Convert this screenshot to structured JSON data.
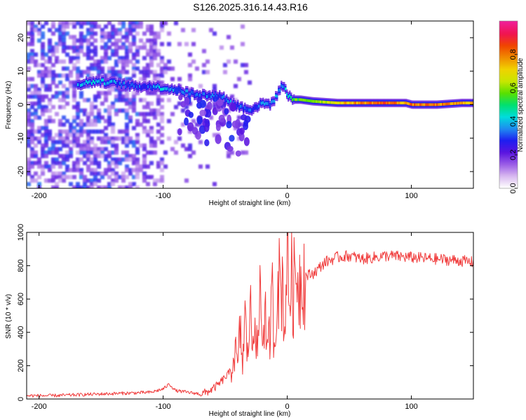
{
  "chart_data": [
    {
      "type": "heatmap",
      "title": "S126.2025.316.14.43.R16",
      "xlabel": "Height of straight line (km)",
      "ylabel": "Frequency (Hz)",
      "xlim": [
        -210,
        150
      ],
      "ylim": [
        -25,
        25
      ],
      "xticks": [
        -200,
        -100,
        0,
        100
      ],
      "yticks": [
        -20,
        -10,
        0,
        10,
        20
      ],
      "xtick_labels": [
        "-200",
        "-100",
        "0",
        "100"
      ],
      "ytick_labels": [
        "-20",
        "-10",
        "0",
        "10",
        "20"
      ],
      "colorbar": {
        "label": "Normalized spectral amplitude",
        "range": [
          0,
          1
        ],
        "ticks": [
          0,
          0.2,
          0.4,
          0.6,
          0.8
        ],
        "tick_labels": [
          "0.0",
          "0.2",
          "0.4",
          "0.6",
          "0.8"
        ],
        "colors": [
          "#ffffff",
          "#d8b8f0",
          "#9a5ce6",
          "#5a14e0",
          "#1e1ef0",
          "#1e8cf0",
          "#00dcdc",
          "#00e070",
          "#5ae000",
          "#c8e600",
          "#f0d200",
          "#f08c00",
          "#f04600",
          "#f01450",
          "#f01e96"
        ]
      },
      "ridge": {
        "x": [
          -170,
          -155,
          -140,
          -125,
          -110,
          -100,
          -90,
          -80,
          -70,
          -60,
          -55,
          -50,
          -45,
          -40,
          -35,
          -30,
          -25,
          -20,
          -15,
          -10,
          -5,
          0,
          5,
          10,
          20,
          40,
          60,
          80,
          95,
          100,
          120,
          140,
          150
        ],
        "y": [
          6,
          7,
          6.5,
          5.5,
          5.5,
          5,
          4.5,
          3.5,
          3,
          2.5,
          3,
          1.5,
          0.5,
          -0.5,
          -1,
          -1.5,
          -0.5,
          0.5,
          0,
          2,
          6,
          3,
          1.5,
          1.5,
          1,
          0.5,
          0.5,
          0.5,
          0.5,
          0,
          0,
          0.5,
          0.5
        ],
        "amplitude": [
          0.35,
          0.4,
          0.35,
          0.3,
          0.32,
          0.4,
          0.35,
          0.35,
          0.3,
          0.35,
          0.3,
          0.35,
          0.35,
          0.3,
          0.35,
          0.3,
          0.3,
          0.35,
          0.3,
          0.35,
          0.35,
          0.4,
          0.55,
          0.55,
          0.6,
          0.7,
          0.8,
          0.85,
          0.75,
          0.8,
          0.8,
          0.75,
          0.75
        ]
      }
    },
    {
      "type": "line",
      "xlabel": "Height of straight line (km)",
      "ylabel": "SNR (10 * v/v)",
      "xlim": [
        -210,
        150
      ],
      "ylim": [
        0,
        1000
      ],
      "xticks": [
        -200,
        -100,
        0,
        100
      ],
      "yticks": [
        0,
        200,
        400,
        600,
        800,
        1000
      ],
      "xtick_labels": [
        "-200",
        "-100",
        "0",
        "100"
      ],
      "ytick_labels": [
        "0",
        "200",
        "400",
        "600",
        "800",
        "1000"
      ],
      "line_color": "#f03c3c",
      "series": [
        {
          "name": "SNR",
          "x": [
            -210,
            -190,
            -170,
            -150,
            -130,
            -110,
            -100,
            -95,
            -90,
            -80,
            -70,
            -65,
            -60,
            -55,
            -50,
            -45,
            -42,
            -40,
            -38,
            -36,
            -34,
            -32,
            -30,
            -28,
            -26,
            -24,
            -22,
            -20,
            -18,
            -16,
            -14,
            -12,
            -10,
            -8,
            -6,
            -4,
            -2,
            0,
            1,
            3,
            5,
            8,
            10,
            12,
            15,
            20,
            25,
            30,
            40,
            50,
            60,
            80,
            100,
            120,
            140,
            150
          ],
          "y": [
            20,
            20,
            25,
            30,
            35,
            40,
            60,
            90,
            50,
            40,
            30,
            40,
            60,
            90,
            130,
            170,
            300,
            180,
            420,
            210,
            480,
            250,
            560,
            300,
            620,
            200,
            700,
            350,
            560,
            250,
            400,
            600,
            300,
            800,
            650,
            720,
            400,
            1000,
            600,
            720,
            650,
            790,
            700,
            770,
            740,
            750,
            780,
            820,
            850,
            860,
            840,
            860,
            850,
            840,
            830,
            820
          ]
        }
      ]
    }
  ]
}
